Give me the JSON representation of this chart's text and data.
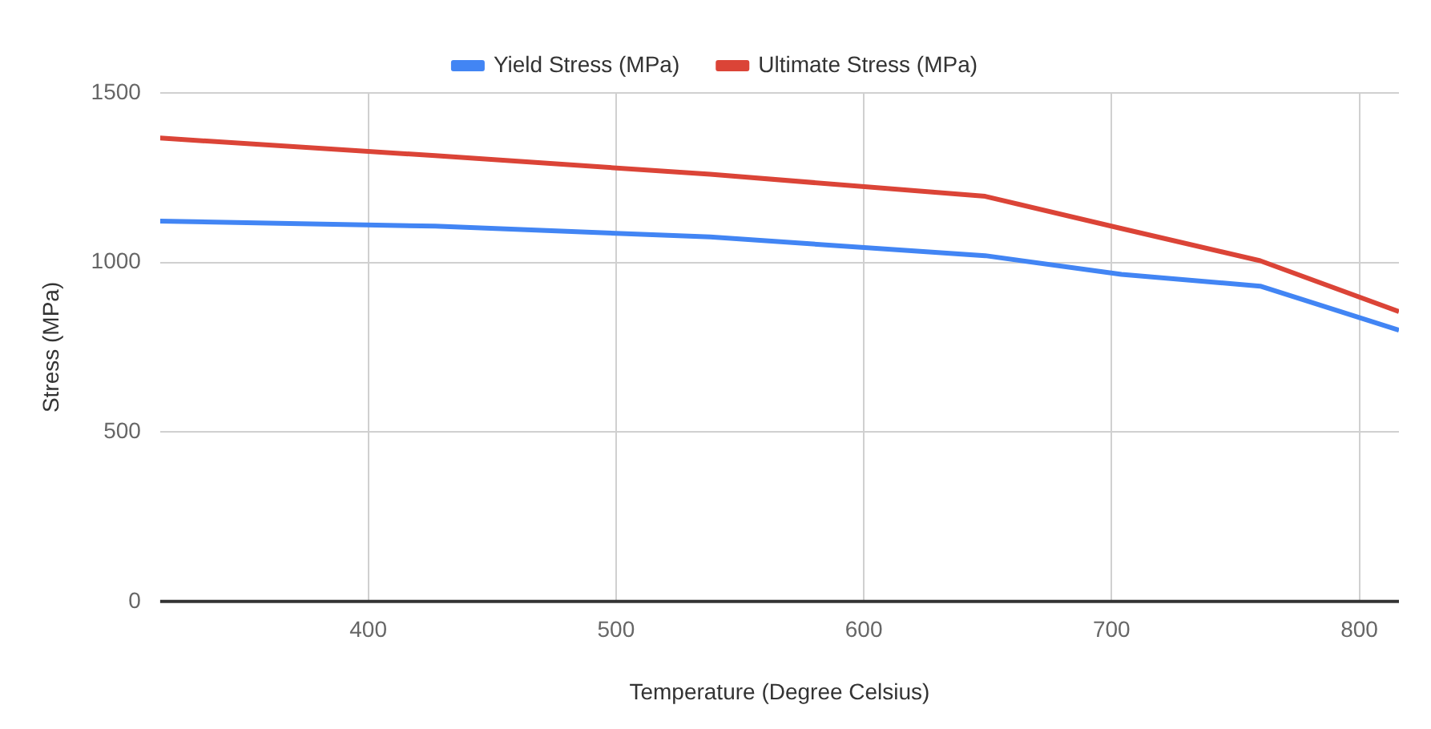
{
  "chart_data": {
    "type": "line",
    "xlabel": "Temperature (Degree Celsius)",
    "ylabel": "Stress (MPa)",
    "x": [
      316,
      427,
      538,
      649,
      704,
      760,
      816
    ],
    "series": [
      {
        "name": "Yield Stress (MPa)",
        "color": "#4285f4",
        "values": [
          1122,
          1107,
          1075,
          1020,
          965,
          930,
          800
        ]
      },
      {
        "name": "Ultimate Stress (MPa)",
        "color": "#db4437",
        "values": [
          1367,
          1315,
          1260,
          1195,
          1100,
          1005,
          855
        ]
      }
    ],
    "xlim": [
      316,
      816
    ],
    "xticks": [
      400,
      500,
      600,
      700,
      800
    ],
    "ylim": [
      0,
      1500
    ],
    "yticks": [
      0,
      500,
      1000,
      1500
    ],
    "grid": true,
    "legend": "top",
    "marker": "none",
    "line_style": "solid"
  }
}
